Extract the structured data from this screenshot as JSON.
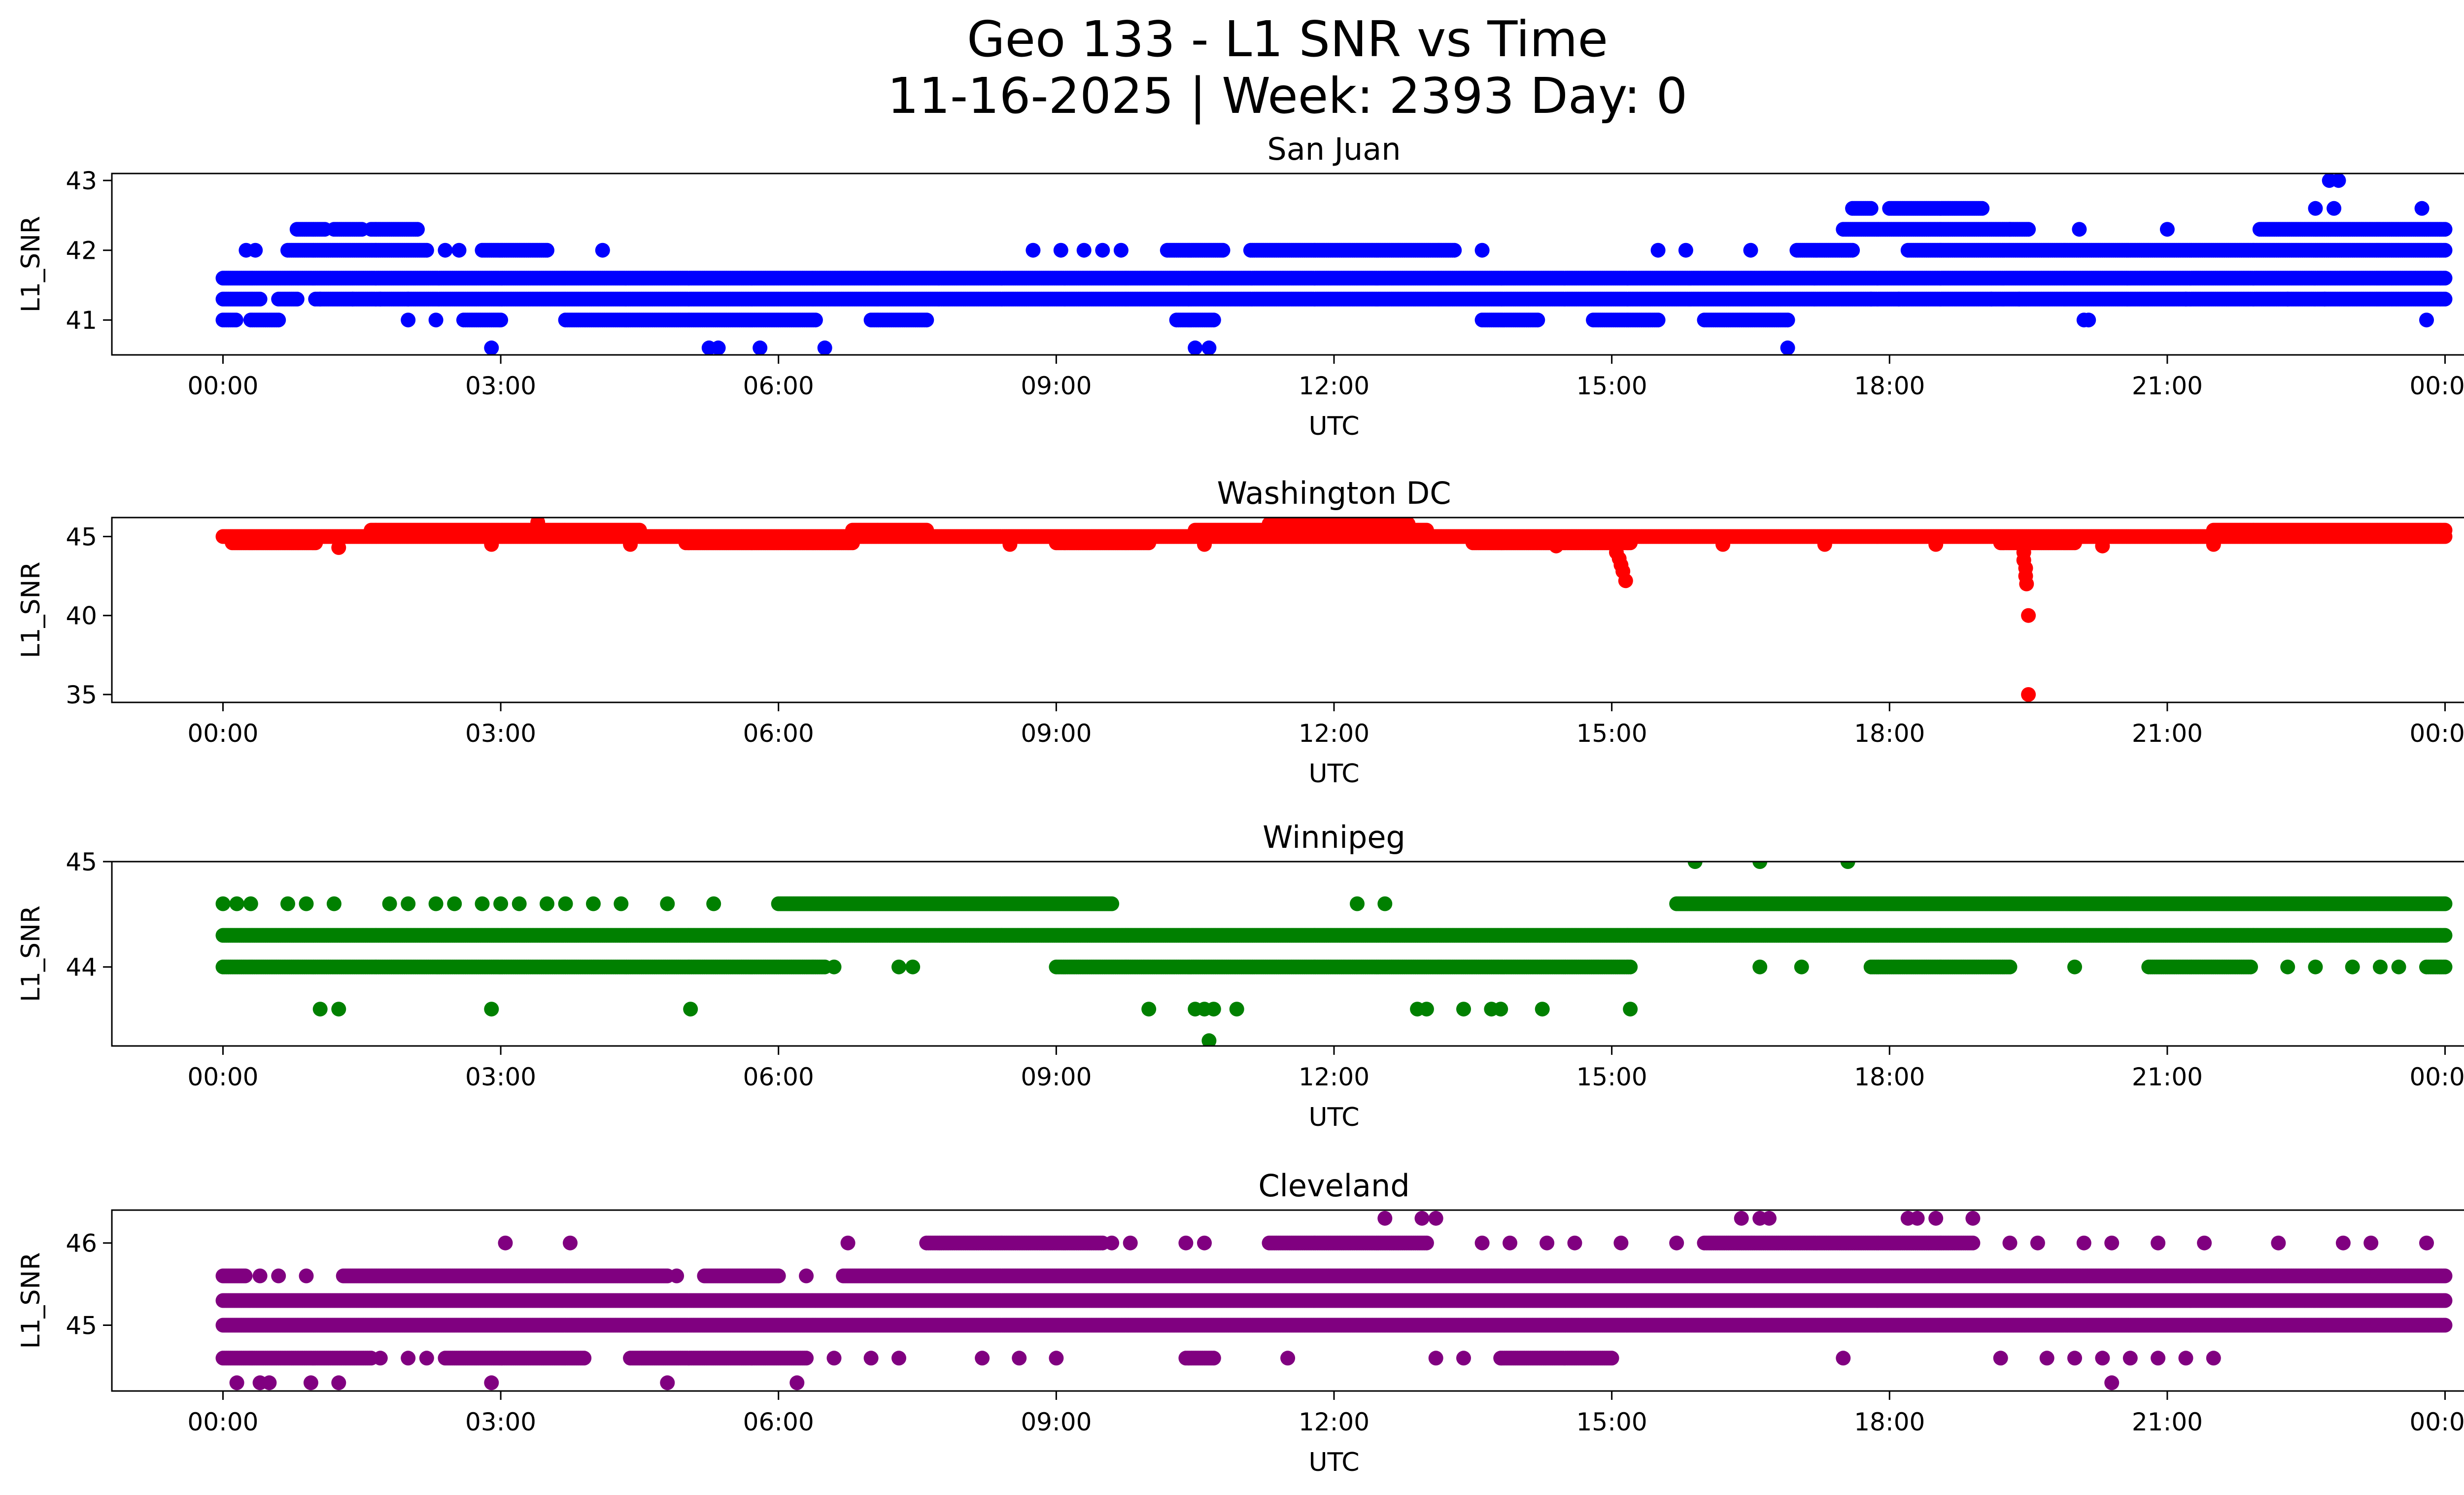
{
  "figure": {
    "title_line1": "Geo 133 - L1 SNR vs Time",
    "title_line2": "11-16-2025 | Week: 2393 Day: 0"
  },
  "chart_data": [
    {
      "type": "scatter",
      "title": "San Juan",
      "xlabel": "UTC",
      "ylabel": "L1_SNR",
      "color": "#0000ff",
      "x_unit": "hours UTC",
      "xlim": [
        -1.2,
        25.2
      ],
      "xticks": [
        0,
        3,
        6,
        9,
        12,
        15,
        18,
        21,
        24
      ],
      "xticklabels": [
        "00:00",
        "03:00",
        "06:00",
        "09:00",
        "12:00",
        "15:00",
        "18:00",
        "21:00",
        "00:00"
      ],
      "ylim": [
        40.5,
        43.1
      ],
      "yticks": [
        41,
        42,
        43
      ],
      "bands": [
        {
          "y": 41.6,
          "ranges": [
            [
              0,
              24
            ]
          ]
        },
        {
          "y": 41.3,
          "ranges": [
            [
              0,
              0.4
            ],
            [
              0.6,
              0.8
            ],
            [
              1.0,
              24
            ]
          ]
        },
        {
          "y": 41.0,
          "ranges": [
            [
              0,
              0.15
            ],
            [
              0.3,
              0.6
            ],
            [
              2.6,
              3.0
            ],
            [
              3.7,
              6.4
            ],
            [
              7.0,
              7.6
            ],
            [
              10.3,
              10.7
            ],
            [
              13.6,
              14.2
            ],
            [
              14.8,
              15.5
            ],
            [
              16.0,
              16.9
            ]
          ]
        },
        {
          "y": 42.0,
          "ranges": [
            [
              0.7,
              2.2
            ],
            [
              2.8,
              3.5
            ],
            [
              10.2,
              10.8
            ],
            [
              11.1,
              13.3
            ],
            [
              17.0,
              17.6
            ],
            [
              18.2,
              24
            ]
          ]
        },
        {
          "y": 42.3,
          "ranges": [
            [
              0.8,
              1.1
            ],
            [
              1.2,
              1.5
            ],
            [
              1.6,
              2.1
            ],
            [
              17.5,
              19.5
            ],
            [
              22.0,
              24
            ]
          ]
        },
        {
          "y": 42.6,
          "ranges": [
            [
              17.6,
              17.8
            ],
            [
              18.0,
              19.0
            ]
          ]
        }
      ],
      "points": [
        [
          0.25,
          42.0
        ],
        [
          0.35,
          42.0
        ],
        [
          2.4,
          42.0
        ],
        [
          2.55,
          42.0
        ],
        [
          4.1,
          42.0
        ],
        [
          8.75,
          42.0
        ],
        [
          9.05,
          42.0
        ],
        [
          9.3,
          42.0
        ],
        [
          9.5,
          42.0
        ],
        [
          9.7,
          42.0
        ],
        [
          13.6,
          42.0
        ],
        [
          15.5,
          42.0
        ],
        [
          15.8,
          42.0
        ],
        [
          16.5,
          42.0
        ],
        [
          2.9,
          40.6
        ],
        [
          5.25,
          40.6
        ],
        [
          5.35,
          40.6
        ],
        [
          5.8,
          40.6
        ],
        [
          6.5,
          40.6
        ],
        [
          10.5,
          40.6
        ],
        [
          10.65,
          40.6
        ],
        [
          16.9,
          40.6
        ],
        [
          1.05,
          41.3
        ],
        [
          1.4,
          41.3
        ],
        [
          1.7,
          41.3
        ],
        [
          2.0,
          41.3
        ],
        [
          17.8,
          41.3
        ],
        [
          18.1,
          41.3
        ],
        [
          19.1,
          41.3
        ],
        [
          19.4,
          41.3
        ],
        [
          21.2,
          41.3
        ],
        [
          22.3,
          41.3
        ],
        [
          22.7,
          41.3
        ],
        [
          20.1,
          41.0
        ],
        [
          20.15,
          41.0
        ],
        [
          23.8,
          41.0
        ],
        [
          2.0,
          41.0
        ],
        [
          2.3,
          41.0
        ],
        [
          19.3,
          42.3
        ],
        [
          20.05,
          42.3
        ],
        [
          21.0,
          42.3
        ],
        [
          22.6,
          42.6
        ],
        [
          22.8,
          42.6
        ],
        [
          23.75,
          42.6
        ],
        [
          22.75,
          43.0
        ],
        [
          22.85,
          43.0
        ]
      ]
    },
    {
      "type": "scatter",
      "title": "Washington DC",
      "xlabel": "UTC",
      "ylabel": "L1_SNR",
      "color": "#ff0000",
      "x_unit": "hours UTC",
      "xlim": [
        -1.2,
        25.2
      ],
      "xticks": [
        0,
        3,
        6,
        9,
        12,
        15,
        18,
        21,
        24
      ],
      "xticklabels": [
        "00:00",
        "03:00",
        "06:00",
        "09:00",
        "12:00",
        "15:00",
        "18:00",
        "21:00",
        "00:00"
      ],
      "ylim": [
        34.5,
        46.2
      ],
      "yticks": [
        35,
        40,
        45
      ],
      "bands": [
        {
          "y": 45.0,
          "ranges": [
            [
              0,
              24
            ]
          ]
        },
        {
          "y": 45.4,
          "ranges": [
            [
              1.6,
              4.5
            ],
            [
              6.8,
              7.6
            ],
            [
              10.5,
              13.0
            ],
            [
              21.5,
              24
            ]
          ]
        },
        {
          "y": 44.6,
          "ranges": [
            [
              0.1,
              1.0
            ],
            [
              5.0,
              6.8
            ],
            [
              9.0,
              10.0
            ],
            [
              13.5,
              15.2
            ],
            [
              19.2,
              20.0
            ]
          ]
        },
        {
          "y": 45.8,
          "ranges": [
            [
              11.3,
              12.7
            ]
          ]
        }
      ],
      "points": [
        [
          3.4,
          45.9
        ],
        [
          12.8,
          45.8
        ],
        [
          1.25,
          44.3
        ],
        [
          2.9,
          44.5
        ],
        [
          4.4,
          44.5
        ],
        [
          8.5,
          44.5
        ],
        [
          10.6,
          44.5
        ],
        [
          14.4,
          44.4
        ],
        [
          16.2,
          44.5
        ],
        [
          17.3,
          44.5
        ],
        [
          18.5,
          44.5
        ],
        [
          20.3,
          44.4
        ],
        [
          21.5,
          44.5
        ],
        [
          15.05,
          44.0
        ],
        [
          15.08,
          43.6
        ],
        [
          15.1,
          43.2
        ],
        [
          15.12,
          42.8
        ],
        [
          15.15,
          42.2
        ],
        [
          19.45,
          44.0
        ],
        [
          19.45,
          43.5
        ],
        [
          19.47,
          43.0
        ],
        [
          19.47,
          42.5
        ],
        [
          19.48,
          42.0
        ],
        [
          19.5,
          40.0
        ],
        [
          19.5,
          35.0
        ]
      ]
    },
    {
      "type": "scatter",
      "title": "Winnipeg",
      "xlabel": "UTC",
      "ylabel": "L1_SNR",
      "color": "#008000",
      "x_unit": "hours UTC",
      "xlim": [
        -1.2,
        25.2
      ],
      "xticks": [
        0,
        3,
        6,
        9,
        12,
        15,
        18,
        21,
        24
      ],
      "xticklabels": [
        "00:00",
        "03:00",
        "06:00",
        "09:00",
        "12:00",
        "15:00",
        "18:00",
        "21:00",
        "00:00"
      ],
      "ylim": [
        43.25,
        45.0
      ],
      "yticks": [
        44,
        45
      ],
      "bands": [
        {
          "y": 44.3,
          "ranges": [
            [
              0,
              24
            ]
          ]
        },
        {
          "y": 44.0,
          "ranges": [
            [
              0,
              6.5
            ],
            [
              9.0,
              15.2
            ],
            [
              17.8,
              19.3
            ],
            [
              20.8,
              21.9
            ],
            [
              23.8,
              24
            ]
          ]
        },
        {
          "y": 44.6,
          "ranges": [
            [
              6.0,
              9.6
            ],
            [
              15.7,
              24
            ]
          ]
        }
      ],
      "points": [
        [
          0.0,
          44.6
        ],
        [
          0.15,
          44.6
        ],
        [
          0.3,
          44.6
        ],
        [
          0.7,
          44.6
        ],
        [
          0.9,
          44.6
        ],
        [
          1.2,
          44.6
        ],
        [
          1.8,
          44.6
        ],
        [
          2.0,
          44.6
        ],
        [
          2.3,
          44.6
        ],
        [
          2.5,
          44.6
        ],
        [
          2.8,
          44.6
        ],
        [
          3.0,
          44.6
        ],
        [
          3.2,
          44.6
        ],
        [
          3.5,
          44.6
        ],
        [
          3.7,
          44.6
        ],
        [
          4.0,
          44.6
        ],
        [
          4.3,
          44.6
        ],
        [
          4.8,
          44.6
        ],
        [
          5.3,
          44.6
        ],
        [
          12.25,
          44.6
        ],
        [
          12.55,
          44.6
        ],
        [
          6.6,
          44.0
        ],
        [
          7.3,
          44.0
        ],
        [
          7.45,
          44.0
        ],
        [
          16.6,
          44.0
        ],
        [
          17.05,
          44.0
        ],
        [
          20.0,
          44.0
        ],
        [
          22.3,
          44.0
        ],
        [
          22.6,
          44.0
        ],
        [
          23.0,
          44.0
        ],
        [
          23.3,
          44.0
        ],
        [
          23.5,
          44.0
        ],
        [
          1.05,
          43.6
        ],
        [
          1.25,
          43.6
        ],
        [
          2.9,
          43.6
        ],
        [
          5.05,
          43.6
        ],
        [
          10.0,
          43.6
        ],
        [
          10.5,
          43.6
        ],
        [
          10.6,
          43.6
        ],
        [
          10.7,
          43.6
        ],
        [
          10.95,
          43.6
        ],
        [
          12.9,
          43.6
        ],
        [
          13.0,
          43.6
        ],
        [
          13.4,
          43.6
        ],
        [
          13.7,
          43.6
        ],
        [
          13.8,
          43.6
        ],
        [
          14.25,
          43.6
        ],
        [
          15.2,
          43.6
        ],
        [
          10.65,
          43.3
        ],
        [
          15.9,
          45.0
        ],
        [
          16.6,
          45.0
        ],
        [
          17.55,
          45.0
        ]
      ]
    },
    {
      "type": "scatter",
      "title": "Cleveland",
      "xlabel": "UTC",
      "ylabel": "L1_SNR",
      "color": "#800080",
      "x_unit": "hours UTC",
      "xlim": [
        -1.2,
        25.2
      ],
      "xticks": [
        0,
        3,
        6,
        9,
        12,
        15,
        18,
        21,
        24
      ],
      "xticklabels": [
        "00:00",
        "03:00",
        "06:00",
        "09:00",
        "12:00",
        "15:00",
        "18:00",
        "21:00",
        "00:00"
      ],
      "ylim": [
        44.2,
        46.4
      ],
      "yticks": [
        45,
        46
      ],
      "bands": [
        {
          "y": 45.6,
          "ranges": [
            [
              0,
              0.25
            ],
            [
              1.3,
              4.8
            ],
            [
              5.2,
              6.0
            ],
            [
              6.7,
              24
            ]
          ]
        },
        {
          "y": 45.3,
          "ranges": [
            [
              0,
              24
            ]
          ]
        },
        {
          "y": 45.0,
          "ranges": [
            [
              0,
              24
            ]
          ]
        },
        {
          "y": 44.6,
          "ranges": [
            [
              0,
              1.6
            ],
            [
              2.4,
              3.9
            ],
            [
              4.4,
              6.3
            ],
            [
              10.4,
              10.7
            ],
            [
              13.8,
              15.0
            ]
          ]
        },
        {
          "y": 46.0,
          "ranges": [
            [
              7.6,
              9.5
            ],
            [
              11.3,
              13.0
            ],
            [
              16.0,
              18.9
            ]
          ]
        }
      ],
      "points": [
        [
          0.4,
          45.6
        ],
        [
          0.6,
          45.6
        ],
        [
          0.9,
          45.6
        ],
        [
          4.9,
          45.6
        ],
        [
          6.3,
          45.6
        ],
        [
          1.7,
          44.6
        ],
        [
          2.0,
          44.6
        ],
        [
          2.2,
          44.6
        ],
        [
          6.6,
          44.6
        ],
        [
          7.0,
          44.6
        ],
        [
          7.3,
          44.6
        ],
        [
          8.2,
          44.6
        ],
        [
          8.6,
          44.6
        ],
        [
          9.0,
          44.6
        ],
        [
          11.5,
          44.6
        ],
        [
          13.1,
          44.6
        ],
        [
          13.4,
          44.6
        ],
        [
          17.5,
          44.6
        ],
        [
          19.2,
          44.6
        ],
        [
          19.7,
          44.6
        ],
        [
          20.0,
          44.6
        ],
        [
          20.3,
          44.6
        ],
        [
          20.6,
          44.6
        ],
        [
          20.9,
          44.6
        ],
        [
          21.2,
          44.6
        ],
        [
          21.5,
          44.6
        ],
        [
          3.05,
          46.0
        ],
        [
          3.75,
          46.0
        ],
        [
          6.75,
          46.0
        ],
        [
          9.6,
          46.0
        ],
        [
          9.8,
          46.0
        ],
        [
          10.4,
          46.0
        ],
        [
          10.6,
          46.0
        ],
        [
          13.6,
          46.0
        ],
        [
          13.9,
          46.0
        ],
        [
          14.3,
          46.0
        ],
        [
          14.6,
          46.0
        ],
        [
          15.1,
          46.0
        ],
        [
          15.7,
          46.0
        ],
        [
          19.3,
          46.0
        ],
        [
          19.6,
          46.0
        ],
        [
          20.1,
          46.0
        ],
        [
          20.4,
          46.0
        ],
        [
          20.9,
          46.0
        ],
        [
          21.4,
          46.0
        ],
        [
          22.2,
          46.0
        ],
        [
          22.9,
          46.0
        ],
        [
          23.2,
          46.0
        ],
        [
          23.8,
          46.0
        ],
        [
          12.55,
          46.3
        ],
        [
          12.95,
          46.3
        ],
        [
          13.1,
          46.3
        ],
        [
          16.4,
          46.3
        ],
        [
          16.6,
          46.3
        ],
        [
          16.7,
          46.3
        ],
        [
          18.2,
          46.3
        ],
        [
          18.3,
          46.3
        ],
        [
          18.5,
          46.3
        ],
        [
          18.9,
          46.3
        ],
        [
          0.15,
          44.3
        ],
        [
          0.4,
          44.3
        ],
        [
          0.5,
          44.3
        ],
        [
          0.95,
          44.3
        ],
        [
          1.25,
          44.3
        ],
        [
          2.9,
          44.3
        ],
        [
          4.8,
          44.3
        ],
        [
          6.2,
          44.3
        ],
        [
          20.4,
          44.3
        ]
      ]
    }
  ]
}
